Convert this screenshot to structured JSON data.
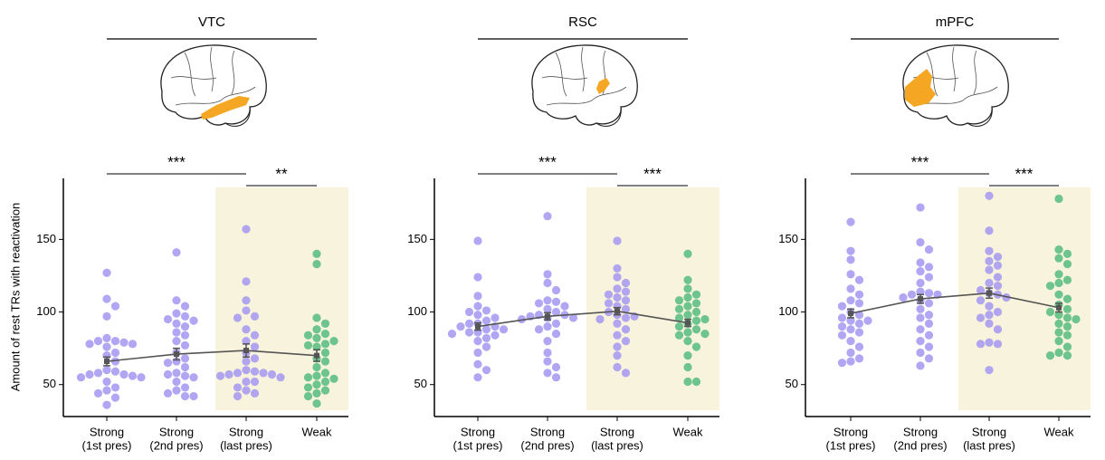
{
  "chart_data": [
    {
      "type": "strip",
      "title": "VTC",
      "ylabel": "Amount of rest TRs with reactivation",
      "categories": [
        [
          "Strong",
          "(1st pres)"
        ],
        [
          "Strong",
          "(2nd pres)"
        ],
        [
          "Strong",
          "(last pres)"
        ],
        [
          "Weak"
        ]
      ],
      "colors": [
        "#a99cf2",
        "#a99cf2",
        "#a99cf2",
        "#5dbf84"
      ],
      "values": [
        [
          127,
          109,
          104,
          97,
          82,
          80,
          80,
          79,
          78,
          78,
          76,
          72,
          70,
          66,
          60,
          59,
          58,
          57,
          57,
          56,
          55,
          55,
          52,
          48,
          46,
          44,
          41,
          36
        ],
        [
          141,
          108,
          104,
          99,
          97,
          95,
          94,
          92,
          90,
          86,
          84,
          80,
          77,
          72,
          68,
          66,
          65,
          62,
          58,
          57,
          56,
          55,
          52,
          48,
          46,
          44,
          42,
          42
        ],
        [
          157,
          121,
          108,
          101,
          97,
          96,
          88,
          84,
          80,
          76,
          72,
          68,
          66,
          60,
          59,
          58,
          58,
          57,
          57,
          56,
          55,
          52,
          52,
          48,
          46,
          44,
          42
        ],
        [
          140,
          133,
          96,
          92,
          88,
          85,
          84,
          82,
          80,
          78,
          77,
          76,
          72,
          68,
          66,
          62,
          58,
          56,
          55,
          54,
          52,
          50,
          48,
          46,
          44,
          42,
          37
        ]
      ],
      "means": [
        66,
        71,
        73.5,
        70
      ],
      "sem": [
        3,
        4,
        4.5,
        4
      ],
      "significance": [
        {
          "label": "***",
          "from": 0,
          "to": 2
        },
        {
          "label": "**",
          "from": 2,
          "to": 3
        }
      ],
      "highlight": [
        2,
        3
      ],
      "ylim": [
        28,
        192
      ],
      "yticks": [
        50,
        100,
        150
      ]
    },
    {
      "type": "strip",
      "title": "RSC",
      "categories": [
        [
          "Strong",
          "(1st pres)"
        ],
        [
          "Strong",
          "(2nd pres)"
        ],
        [
          "Strong",
          "(last pres)"
        ],
        [
          "Weak"
        ]
      ],
      "colors": [
        "#a99cf2",
        "#a99cf2",
        "#a99cf2",
        "#5dbf84"
      ],
      "values": [
        [
          149,
          124,
          111,
          104,
          101,
          100,
          98,
          96,
          94,
          92,
          92,
          90,
          90,
          88,
          88,
          86,
          86,
          85,
          84,
          82,
          80,
          76,
          72,
          64,
          60,
          55
        ],
        [
          166,
          126,
          120,
          115,
          108,
          107,
          106,
          104,
          102,
          100,
          98,
          98,
          97,
          96,
          96,
          95,
          92,
          90,
          88,
          85,
          80,
          72,
          66,
          62,
          58,
          55
        ],
        [
          149,
          130,
          124,
          120,
          116,
          114,
          112,
          110,
          108,
          106,
          104,
          102,
          100,
          98,
          97,
          96,
          95,
          92,
          88,
          84,
          80,
          76,
          70,
          62,
          58
        ],
        [
          140,
          122,
          116,
          112,
          110,
          108,
          106,
          104,
          102,
          100,
          98,
          96,
          95,
          94,
          92,
          90,
          88,
          86,
          85,
          84,
          80,
          76,
          70,
          62,
          52,
          52
        ]
      ],
      "means": [
        90,
        97,
        100.5,
        92.5
      ],
      "sem": [
        2.5,
        2.5,
        2.5,
        2.5
      ],
      "significance": [
        {
          "label": "***",
          "from": 0,
          "to": 2
        },
        {
          "label": "***",
          "from": 2,
          "to": 3
        }
      ],
      "highlight": [
        2,
        3
      ],
      "ylim": [
        28,
        192
      ],
      "yticks": [
        50,
        100,
        150
      ]
    },
    {
      "type": "strip",
      "title": "mPFC",
      "categories": [
        [
          "Strong",
          "(1st pres)"
        ],
        [
          "Strong",
          "(2nd pres)"
        ],
        [
          "Strong",
          "(last pres)"
        ],
        [
          "Weak"
        ]
      ],
      "colors": [
        "#a99cf2",
        "#a99cf2",
        "#a99cf2",
        "#5dbf84"
      ],
      "values": [
        [
          162,
          142,
          136,
          126,
          122,
          116,
          112,
          108,
          106,
          104,
          100,
          98,
          96,
          94,
          94,
          92,
          90,
          88,
          86,
          84,
          80,
          76,
          72,
          68,
          66,
          65
        ],
        [
          172,
          148,
          143,
          134,
          131,
          128,
          124,
          120,
          114,
          113,
          112,
          112,
          110,
          108,
          106,
          102,
          98,
          96,
          92,
          88,
          84,
          80,
          76,
          72,
          68,
          63
        ],
        [
          180,
          156,
          142,
          138,
          135,
          132,
          129,
          124,
          120,
          118,
          115,
          113,
          112,
          110,
          108,
          104,
          100,
          98,
          96,
          92,
          88,
          79,
          78,
          78,
          60
        ],
        [
          178,
          143,
          140,
          137,
          133,
          126,
          122,
          120,
          118,
          112,
          109,
          105,
          102,
          100,
          98,
          96,
          95,
          92,
          90,
          86,
          84,
          80,
          76,
          72,
          70,
          70
        ]
      ],
      "means": [
        99,
        109,
        113,
        103
      ],
      "sem": [
        3,
        3,
        3.5,
        3
      ],
      "significance": [
        {
          "label": "***",
          "from": 0,
          "to": 2
        },
        {
          "label": "***",
          "from": 2,
          "to": 3
        }
      ],
      "highlight": [
        2,
        3
      ],
      "ylim": [
        28,
        192
      ],
      "yticks": [
        50,
        100,
        150
      ]
    }
  ]
}
